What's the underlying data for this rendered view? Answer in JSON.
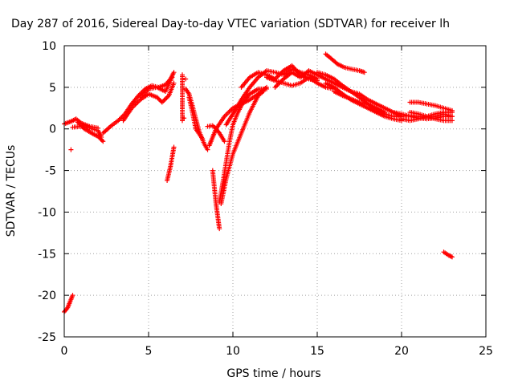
{
  "chart_data": {
    "type": "scatter",
    "title": "Day 287 of 2016, Sidereal Day-to-day VTEC variation (SDTVAR) for receiver lh",
    "xlabel": "GPS time / hours",
    "ylabel": "SDTVAR / TECUs",
    "xlim": [
      0,
      25
    ],
    "ylim": [
      -25,
      10
    ],
    "xticks": [
      "0",
      "5",
      "10",
      "15",
      "20",
      "25"
    ],
    "yticks": [
      "10",
      "5",
      "0",
      "-5",
      "-10",
      "-15",
      "-20",
      "-25"
    ],
    "grid": true,
    "marker": "plus",
    "colors": {
      "series": "#ff0000"
    },
    "segments": [
      {
        "points": [
          [
            0.0,
            0.6
          ],
          [
            0.4,
            0.9
          ],
          [
            0.7,
            1.2
          ],
          [
            1.0,
            0.7
          ],
          [
            1.5,
            0.3
          ],
          [
            2.0,
            0.1
          ]
        ]
      },
      {
        "points": [
          [
            0.5,
            0.2
          ],
          [
            1.0,
            0.3
          ],
          [
            1.5,
            0.1
          ],
          [
            2.0,
            -0.2
          ],
          [
            2.2,
            -1.0
          ]
        ]
      },
      {
        "points": [
          [
            0.8,
            0.8
          ],
          [
            1.2,
            0.0
          ],
          [
            1.7,
            -0.6
          ],
          [
            2.0,
            -0.9
          ],
          [
            2.3,
            -1.5
          ]
        ]
      },
      {
        "points": [
          [
            2.3,
            -0.5
          ],
          [
            2.8,
            0.4
          ],
          [
            3.2,
            1.0
          ],
          [
            3.6,
            1.8
          ],
          [
            4.0,
            3.0
          ],
          [
            4.4,
            4.0
          ],
          [
            4.8,
            4.8
          ],
          [
            5.2,
            5.2
          ],
          [
            5.6,
            5.0
          ],
          [
            6.0,
            5.3
          ],
          [
            6.3,
            6.0
          ],
          [
            6.5,
            6.8
          ]
        ]
      },
      {
        "points": [
          [
            3.5,
            1.0
          ],
          [
            4.0,
            2.5
          ],
          [
            4.5,
            3.5
          ],
          [
            5.0,
            4.2
          ],
          [
            5.5,
            3.8
          ],
          [
            5.8,
            3.2
          ],
          [
            6.2,
            4.0
          ],
          [
            6.5,
            5.5
          ]
        ]
      },
      {
        "points": [
          [
            4.5,
            3.8
          ],
          [
            5.0,
            4.8
          ],
          [
            5.5,
            5.0
          ],
          [
            6.0,
            4.5
          ],
          [
            6.4,
            6.2
          ]
        ]
      },
      {
        "points": [
          [
            6.1,
            -6.2
          ],
          [
            6.3,
            -4.5
          ],
          [
            6.5,
            -2.2
          ]
        ]
      },
      {
        "points": [
          [
            7.0,
            6.5
          ],
          [
            7.0,
            4.5
          ],
          [
            7.0,
            1.0
          ]
        ]
      },
      {
        "points": [
          [
            7.2,
            4.8
          ],
          [
            7.4,
            4.2
          ],
          [
            7.6,
            2.8
          ],
          [
            7.8,
            1.2
          ],
          [
            8.0,
            -0.3
          ],
          [
            8.3,
            -1.8
          ],
          [
            8.5,
            -2.5
          ]
        ]
      },
      {
        "points": [
          [
            7.4,
            3.8
          ],
          [
            7.6,
            2.0
          ],
          [
            7.8,
            0.0
          ],
          [
            8.2,
            -1.2
          ]
        ]
      },
      {
        "points": [
          [
            8.5,
            0.3
          ],
          [
            8.8,
            0.4
          ],
          [
            9.0,
            0.0
          ],
          [
            9.2,
            -0.5
          ],
          [
            9.5,
            -1.5
          ]
        ]
      },
      {
        "points": [
          [
            8.6,
            -2.0
          ],
          [
            8.8,
            -1.0
          ],
          [
            9.0,
            0.0
          ],
          [
            9.5,
            1.5
          ],
          [
            10.0,
            2.5
          ],
          [
            10.5,
            3.0
          ],
          [
            11.0,
            3.5
          ],
          [
            11.5,
            4.2
          ],
          [
            12.0,
            5.0
          ]
        ]
      },
      {
        "points": [
          [
            8.8,
            -5.0
          ],
          [
            8.9,
            -7.0
          ],
          [
            9.0,
            -9.0
          ],
          [
            9.1,
            -10.5
          ],
          [
            9.2,
            -12.0
          ]
        ]
      },
      {
        "points": [
          [
            9.2,
            -8.8
          ],
          [
            9.4,
            -6.5
          ],
          [
            9.6,
            -4.0
          ],
          [
            9.8,
            -1.5
          ],
          [
            10.0,
            0.5
          ],
          [
            10.3,
            2.0
          ],
          [
            10.6,
            3.2
          ],
          [
            11.0,
            4.2
          ],
          [
            11.5,
            4.8
          ],
          [
            12.0,
            4.8
          ]
        ]
      },
      {
        "points": [
          [
            9.3,
            -9.0
          ],
          [
            9.6,
            -6.0
          ],
          [
            10.0,
            -3.0
          ],
          [
            10.5,
            -0.5
          ],
          [
            11.0,
            2.0
          ],
          [
            11.5,
            4.0
          ],
          [
            11.8,
            4.5
          ]
        ]
      },
      {
        "points": [
          [
            9.6,
            0.5
          ],
          [
            10.0,
            1.8
          ],
          [
            10.5,
            3.5
          ],
          [
            11.0,
            5.0
          ],
          [
            11.5,
            6.2
          ],
          [
            12.0,
            7.0
          ],
          [
            12.5,
            6.8
          ],
          [
            13.0,
            6.5
          ],
          [
            13.5,
            7.2
          ],
          [
            14.0,
            6.8
          ],
          [
            14.5,
            6.5
          ],
          [
            15.0,
            6.0
          ]
        ]
      },
      {
        "points": [
          [
            10.5,
            5.0
          ],
          [
            11.0,
            6.2
          ],
          [
            11.5,
            6.8
          ],
          [
            12.0,
            6.5
          ],
          [
            12.5,
            6.0
          ],
          [
            13.0,
            7.0
          ],
          [
            13.5,
            7.6
          ],
          [
            14.0,
            6.5
          ],
          [
            14.5,
            6.0
          ],
          [
            15.0,
            5.8
          ]
        ]
      },
      {
        "points": [
          [
            12.0,
            6.2
          ],
          [
            12.5,
            5.8
          ],
          [
            13.0,
            5.5
          ],
          [
            13.5,
            5.2
          ],
          [
            14.0,
            5.5
          ],
          [
            14.5,
            6.2
          ],
          [
            15.0,
            5.5
          ],
          [
            15.5,
            5.0
          ],
          [
            16.0,
            4.8
          ]
        ]
      },
      {
        "points": [
          [
            12.5,
            5.0
          ],
          [
            13.0,
            6.0
          ],
          [
            13.5,
            6.8
          ],
          [
            14.0,
            6.2
          ],
          [
            14.5,
            7.0
          ],
          [
            15.0,
            6.5
          ],
          [
            15.5,
            6.0
          ],
          [
            16.0,
            5.5
          ],
          [
            16.5,
            5.0
          ],
          [
            17.0,
            4.5
          ],
          [
            17.5,
            4.2
          ],
          [
            18.0,
            3.5
          ],
          [
            18.5,
            3.0
          ],
          [
            19.0,
            2.5
          ],
          [
            19.5,
            2.0
          ],
          [
            20.0,
            1.5
          ]
        ]
      },
      {
        "points": [
          [
            15.0,
            6.8
          ],
          [
            15.5,
            6.5
          ],
          [
            16.0,
            6.0
          ],
          [
            16.5,
            5.2
          ],
          [
            17.0,
            4.5
          ],
          [
            17.5,
            3.8
          ],
          [
            18.0,
            3.0
          ],
          [
            18.5,
            2.2
          ],
          [
            19.0,
            1.8
          ],
          [
            19.5,
            1.5
          ],
          [
            20.0,
            1.5
          ]
        ]
      },
      {
        "points": [
          [
            15.5,
            5.5
          ],
          [
            16.0,
            5.0
          ],
          [
            16.5,
            4.2
          ],
          [
            17.0,
            3.5
          ],
          [
            17.5,
            3.0
          ],
          [
            18.0,
            2.5
          ],
          [
            18.5,
            2.0
          ],
          [
            19.0,
            1.5
          ],
          [
            19.5,
            1.2
          ],
          [
            20.0,
            1.0
          ]
        ]
      },
      {
        "points": [
          [
            15.5,
            9.0
          ],
          [
            15.8,
            8.5
          ],
          [
            16.2,
            7.8
          ],
          [
            16.6,
            7.4
          ],
          [
            17.0,
            7.2
          ],
          [
            17.5,
            7.0
          ],
          [
            17.8,
            6.8
          ]
        ]
      },
      {
        "points": [
          [
            16.0,
            4.5
          ],
          [
            16.5,
            4.0
          ],
          [
            17.0,
            3.6
          ],
          [
            17.5,
            3.2
          ],
          [
            18.0,
            3.0
          ],
          [
            18.5,
            2.5
          ],
          [
            19.0,
            2.0
          ]
        ]
      },
      {
        "points": [
          [
            19.5,
            2.0
          ],
          [
            20.0,
            1.8
          ],
          [
            20.5,
            1.5
          ],
          [
            21.0,
            1.3
          ],
          [
            21.5,
            1.2
          ],
          [
            22.0,
            1.3
          ],
          [
            22.5,
            1.5
          ],
          [
            23.0,
            1.5
          ]
        ]
      },
      {
        "points": [
          [
            20.0,
            1.2
          ],
          [
            20.5,
            1.0
          ],
          [
            21.0,
            1.2
          ],
          [
            21.5,
            1.5
          ],
          [
            22.0,
            1.8
          ],
          [
            22.5,
            2.0
          ],
          [
            23.0,
            2.0
          ]
        ]
      },
      {
        "points": [
          [
            20.5,
            2.0
          ],
          [
            21.0,
            1.8
          ],
          [
            21.5,
            1.5
          ],
          [
            22.0,
            1.2
          ],
          [
            22.5,
            1.0
          ],
          [
            23.0,
            1.0
          ]
        ]
      },
      {
        "points": [
          [
            20.5,
            3.2
          ],
          [
            21.0,
            3.2
          ],
          [
            21.5,
            3.0
          ],
          [
            22.0,
            2.8
          ],
          [
            22.5,
            2.5
          ],
          [
            23.0,
            2.2
          ]
        ]
      },
      {
        "points": [
          [
            20.0,
            1.5
          ],
          [
            20.5,
            1.6
          ],
          [
            21.0,
            1.5
          ],
          [
            21.5,
            1.4
          ],
          [
            22.0,
            1.5
          ],
          [
            22.5,
            1.8
          ],
          [
            23.0,
            1.5
          ]
        ]
      },
      {
        "points": [
          [
            22.5,
            -14.8
          ],
          [
            22.8,
            -15.2
          ],
          [
            23.0,
            -15.4
          ]
        ]
      },
      {
        "points": [
          [
            0.0,
            -22.0
          ],
          [
            0.2,
            -21.5
          ],
          [
            0.3,
            -21.0
          ],
          [
            0.4,
            -20.5
          ],
          [
            0.5,
            -20.0
          ]
        ]
      }
    ],
    "isolated_points": [
      [
        0.4,
        -2.5
      ],
      [
        7.2,
        6.0
      ],
      [
        7.1,
        1.3
      ]
    ]
  }
}
